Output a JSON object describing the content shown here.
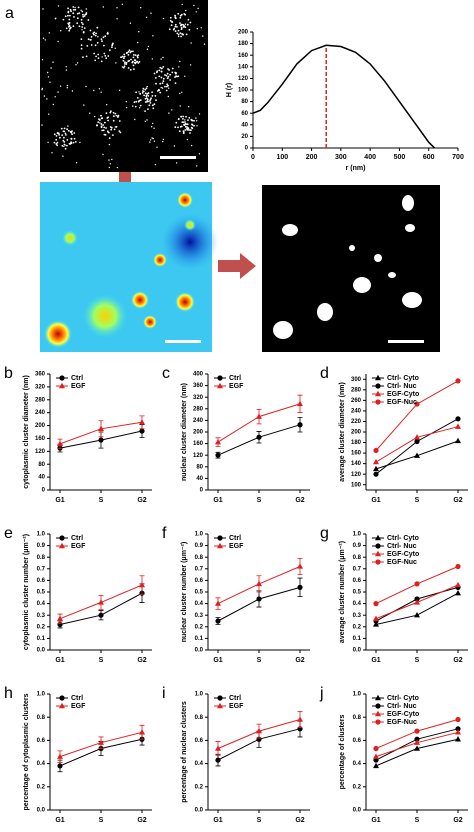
{
  "chart_data": [
    {
      "type": "line",
      "panel": "a",
      "xlabel": "r (nm)",
      "ylabel": "H (r)",
      "x": [
        0,
        25,
        50,
        100,
        150,
        200,
        250,
        300,
        350,
        400,
        450,
        500,
        550,
        600,
        620
      ],
      "series": [
        {
          "color": "#000000",
          "values": [
            60,
            65,
            78,
            110,
            145,
            168,
            177,
            175,
            165,
            145,
            115,
            80,
            45,
            10,
            0
          ]
        }
      ],
      "vline": 250,
      "vline_color": "#e02020",
      "xlim": [
        0,
        700
      ],
      "xticks": [
        0,
        100,
        200,
        300,
        400,
        500,
        600,
        700
      ],
      "ylim": [
        0,
        200
      ],
      "yticks": [
        0,
        20,
        40,
        60,
        80,
        100,
        120,
        140,
        160,
        180,
        200
      ]
    },
    {
      "type": "line",
      "panel": "b",
      "ylabel": "cytoplasmic cluster diameter (nm)",
      "categories": [
        "G1",
        "S",
        "G2"
      ],
      "series": [
        {
          "name": "Ctrl",
          "color": "#000000",
          "marker": "circle",
          "values": [
            130,
            155,
            183
          ],
          "errors": [
            12,
            25,
            20
          ]
        },
        {
          "name": "EGF",
          "color": "#e02020",
          "marker": "triangle",
          "values": [
            143,
            190,
            210
          ],
          "errors": [
            15,
            25,
            20
          ]
        }
      ],
      "ylim": [
        0,
        360
      ],
      "yticks": [
        0,
        40,
        80,
        120,
        160,
        200,
        240,
        280,
        320,
        360
      ]
    },
    {
      "type": "line",
      "panel": "c",
      "ylabel": "nuclear cluster diameter (nm)",
      "categories": [
        "G1",
        "S",
        "G2"
      ],
      "series": [
        {
          "name": "Ctrl",
          "color": "#000000",
          "marker": "circle",
          "values": [
            120,
            182,
            225
          ],
          "errors": [
            10,
            20,
            25
          ]
        },
        {
          "name": "EGF",
          "color": "#e02020",
          "marker": "triangle",
          "values": [
            165,
            253,
            297
          ],
          "errors": [
            15,
            25,
            30
          ]
        }
      ],
      "ylim": [
        0,
        400
      ],
      "yticks": [
        0,
        40,
        80,
        120,
        160,
        200,
        240,
        280,
        320,
        360,
        400
      ]
    },
    {
      "type": "line",
      "panel": "d",
      "ylabel": "average cluster diameter (nm)",
      "categories": [
        "G1",
        "S",
        "G2"
      ],
      "series": [
        {
          "name": "Ctrl- Cyto",
          "color": "#000000",
          "marker": "triangle",
          "values": [
            130,
            155,
            183
          ]
        },
        {
          "name": "Ctrl- Nuc",
          "color": "#000000",
          "marker": "circle",
          "values": [
            120,
            182,
            225
          ]
        },
        {
          "name": "EGF-Cyto",
          "color": "#e02020",
          "marker": "triangle",
          "values": [
            143,
            190,
            210
          ]
        },
        {
          "name": "EGF-Nuc",
          "color": "#e02020",
          "marker": "circle",
          "values": [
            165,
            253,
            297
          ]
        }
      ],
      "ylim": [
        90,
        310
      ],
      "yticks": [
        100,
        120,
        140,
        160,
        180,
        200,
        220,
        240,
        260,
        280,
        300
      ]
    },
    {
      "type": "line",
      "panel": "e",
      "ylabel": "cytoplasmic cluster number (μm⁻²)",
      "categories": [
        "G1",
        "S",
        "G2"
      ],
      "series": [
        {
          "name": "Ctrl",
          "color": "#000000",
          "marker": "circle",
          "values": [
            0.22,
            0.3,
            0.49
          ],
          "errors": [
            0.03,
            0.04,
            0.08
          ]
        },
        {
          "name": "EGF",
          "color": "#e02020",
          "marker": "triangle",
          "values": [
            0.27,
            0.41,
            0.56
          ],
          "errors": [
            0.04,
            0.06,
            0.08
          ]
        }
      ],
      "ylim": [
        0,
        1
      ],
      "yticks": [
        {
          "value": 0,
          "label": "0.0"
        },
        0.1,
        0.2,
        0.3,
        0.4,
        0.5,
        0.6,
        0.7,
        0.8,
        0.9,
        {
          "value": 1,
          "label": "1.0"
        }
      ]
    },
    {
      "type": "line",
      "panel": "f",
      "ylabel": "nuclear cluster number (μm⁻²)",
      "categories": [
        "G1",
        "S",
        "G2"
      ],
      "series": [
        {
          "name": "Ctrl",
          "color": "#000000",
          "marker": "circle",
          "values": [
            0.25,
            0.44,
            0.54
          ],
          "errors": [
            0.03,
            0.07,
            0.08
          ]
        },
        {
          "name": "EGF",
          "color": "#e02020",
          "marker": "triangle",
          "values": [
            0.4,
            0.57,
            0.72
          ],
          "errors": [
            0.05,
            0.07,
            0.07
          ]
        }
      ],
      "ylim": [
        0,
        1
      ],
      "yticks": [
        {
          "value": 0,
          "label": "0.0"
        },
        0.1,
        0.2,
        0.3,
        0.4,
        0.5,
        0.6,
        0.7,
        0.8,
        0.9,
        {
          "value": 1,
          "label": "1.0"
        }
      ]
    },
    {
      "type": "line",
      "panel": "g",
      "ylabel": "average cluster number (μm⁻²)",
      "categories": [
        "G1",
        "S",
        "G2"
      ],
      "series": [
        {
          "name": "Ctrl- Cyto",
          "color": "#000000",
          "marker": "triangle",
          "values": [
            0.22,
            0.3,
            0.49
          ]
        },
        {
          "name": "Ctrl- Nuc",
          "color": "#000000",
          "marker": "circle",
          "values": [
            0.25,
            0.44,
            0.54
          ]
        },
        {
          "name": "EGF-Cyto",
          "color": "#e02020",
          "marker": "triangle",
          "values": [
            0.27,
            0.41,
            0.56
          ]
        },
        {
          "name": "EGF-Nuc",
          "color": "#e02020",
          "marker": "circle",
          "values": [
            0.4,
            0.57,
            0.72
          ]
        }
      ],
      "ylim": [
        0,
        1
      ],
      "yticks": [
        {
          "value": 0,
          "label": "0.0"
        },
        0.1,
        0.2,
        0.3,
        0.4,
        0.5,
        0.6,
        0.7,
        0.8,
        0.9,
        {
          "value": 1,
          "label": "1.0"
        }
      ]
    },
    {
      "type": "line",
      "panel": "h",
      "ylabel": "percentage of cytoplasmic clusters",
      "categories": [
        "G1",
        "S",
        "G2"
      ],
      "series": [
        {
          "name": "Ctrl",
          "color": "#000000",
          "marker": "circle",
          "values": [
            0.38,
            0.53,
            0.61
          ],
          "errors": [
            0.05,
            0.06,
            0.05
          ]
        },
        {
          "name": "EGF",
          "color": "#e02020",
          "marker": "triangle",
          "values": [
            0.46,
            0.58,
            0.67
          ],
          "errors": [
            0.05,
            0.05,
            0.06
          ]
        }
      ],
      "ylim": [
        0,
        1
      ],
      "yticks": [
        {
          "value": 0,
          "label": "0.0"
        },
        0.2,
        0.4,
        0.6,
        0.8,
        {
          "value": 1,
          "label": "1.0"
        }
      ]
    },
    {
      "type": "line",
      "panel": "i",
      "ylabel": "percentage of nuclear clusters",
      "categories": [
        "G1",
        "S",
        "G2"
      ],
      "series": [
        {
          "name": "Ctrl",
          "color": "#000000",
          "marker": "circle",
          "values": [
            0.43,
            0.61,
            0.7
          ],
          "errors": [
            0.05,
            0.07,
            0.07
          ]
        },
        {
          "name": "EGF",
          "color": "#e02020",
          "marker": "triangle",
          "values": [
            0.53,
            0.68,
            0.78
          ],
          "errors": [
            0.06,
            0.06,
            0.07
          ]
        }
      ],
      "ylim": [
        0,
        1
      ],
      "yticks": [
        {
          "value": 0,
          "label": "0.0"
        },
        0.2,
        0.4,
        0.6,
        0.8,
        {
          "value": 1,
          "label": "1.0"
        }
      ]
    },
    {
      "type": "line",
      "panel": "j",
      "ylabel": "percentage of clusters",
      "categories": [
        "G1",
        "S",
        "G2"
      ],
      "series": [
        {
          "name": "Ctrl- Cyto",
          "color": "#000000",
          "marker": "triangle",
          "values": [
            0.38,
            0.53,
            0.61
          ]
        },
        {
          "name": "Ctrl- Nuc",
          "color": "#000000",
          "marker": "circle",
          "values": [
            0.43,
            0.61,
            0.7
          ]
        },
        {
          "name": "EGF-Cyto",
          "color": "#e02020",
          "marker": "triangle",
          "values": [
            0.46,
            0.58,
            0.67
          ]
        },
        {
          "name": "EGF-Nuc",
          "color": "#e02020",
          "marker": "circle",
          "values": [
            0.53,
            0.68,
            0.78
          ]
        }
      ],
      "ylim": [
        0,
        1
      ],
      "yticks": [
        {
          "value": 0,
          "label": "0.0"
        },
        0.2,
        0.4,
        0.6,
        0.8,
        {
          "value": 1,
          "label": "1.0"
        }
      ]
    }
  ]
}
